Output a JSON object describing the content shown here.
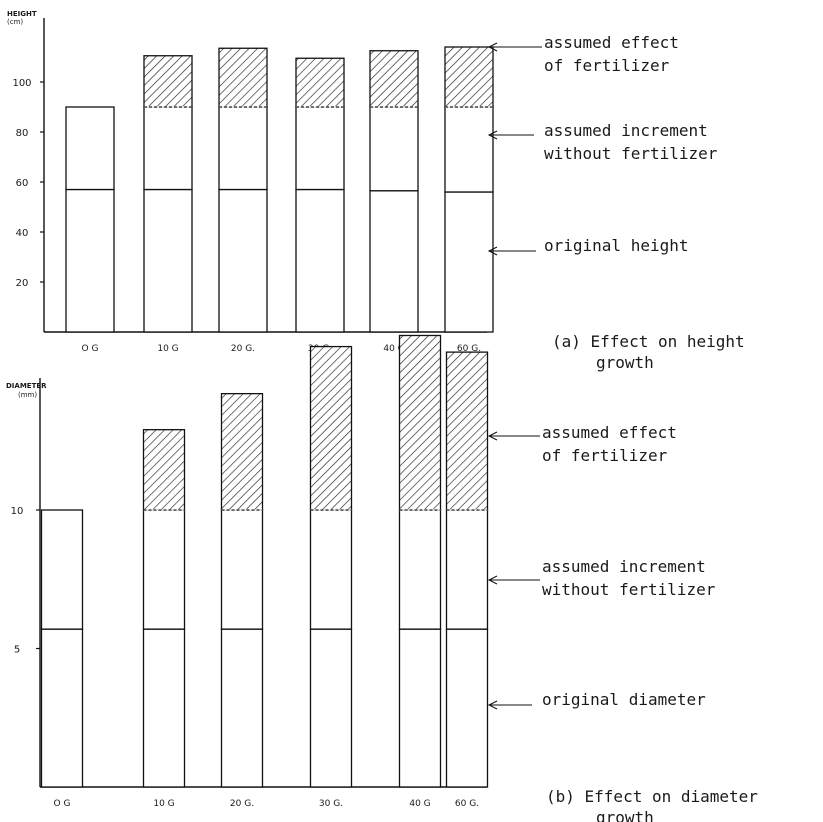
{
  "chart_data": [
    {
      "type": "bar",
      "stacked": true,
      "ylabel": "HEIGHT",
      "yunit": "(cm)",
      "ylim": [
        0,
        115
      ],
      "yticks": [
        20,
        40,
        60,
        80,
        100
      ],
      "categories": [
        "O G",
        "10 G",
        "20 G.",
        "30 G.",
        "40 G",
        "60 G."
      ],
      "series": [
        {
          "values": [
            57,
            57,
            57,
            57,
            56.5,
            56
          ]
        },
        {
          "values": [
            33,
            33,
            33,
            33,
            33.5,
            34
          ]
        },
        {
          "values": [
            0,
            20.5,
            23.5,
            19.5,
            22.5,
            24
          ],
          "pattern": "hatched"
        }
      ],
      "annotations": [
        "assumed effect of fertilizer",
        "assumed increment without fertilizer",
        "original height"
      ],
      "caption": "(a) Effect on height growth"
    },
    {
      "type": "bar",
      "stacked": true,
      "ylabel": "DIAMETER",
      "yunit": "(mm)",
      "ylim": [
        0,
        16.5
      ],
      "yticks": [
        5,
        10
      ],
      "categories": [
        "O G",
        "10 G",
        "20 G.",
        "30 G.",
        "40 G",
        "60 G."
      ],
      "series": [
        {
          "values": [
            5.7,
            5.7,
            5.7,
            5.7,
            5.7,
            5.7
          ]
        },
        {
          "values": [
            4.3,
            4.3,
            4.3,
            4.3,
            4.3,
            4.3
          ]
        },
        {
          "values": [
            0,
            2.9,
            4.2,
            5.9,
            6.3,
            5.7
          ],
          "pattern": "hatched"
        }
      ],
      "annotations": [
        "assumed effect of fertilizer",
        "assumed increment without fertilizer",
        "original diameter"
      ],
      "caption": "(b) Effect on diameter growth"
    }
  ]
}
